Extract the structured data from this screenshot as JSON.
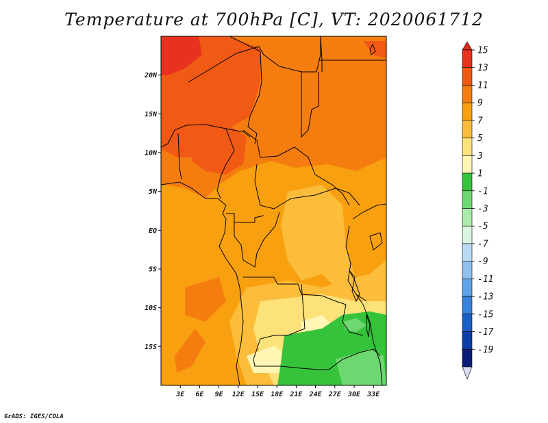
{
  "title": "Temperature at 700hPa [C], VT: 2020061712",
  "credit": "GrADS: IGES/COLA",
  "map": {
    "lon_range": [
      0,
      35
    ],
    "lat_range": [
      -20,
      25
    ],
    "lat_labels": [
      "20N",
      "15N",
      "10N",
      "5N",
      "EQ",
      "5S",
      "10S",
      "15S"
    ],
    "lon_labels": [
      "3E",
      "6E",
      "9E",
      "12E",
      "15E",
      "18E",
      "21E",
      "24E",
      "27E",
      "30E",
      "33E"
    ]
  },
  "colorbar": {
    "labels": [
      "15",
      "13",
      "11",
      "9",
      "7",
      "5",
      "3",
      "1",
      "-1",
      "-3",
      "-5",
      "-7",
      "-9",
      "-11",
      "-13",
      "-15",
      "-17",
      "-19"
    ],
    "colors": [
      "#e8321e",
      "#f05a14",
      "#f57d0f",
      "#f8a00f",
      "#fbbd3a",
      "#fde27a",
      "#fff6b4",
      "#35c33c",
      "#6ed870",
      "#a9ebaa",
      "#d8f5e0",
      "#b8dbf5",
      "#8cc1f0",
      "#5fa3e8",
      "#3682dc",
      "#1a60c8",
      "#0d3fa8",
      "#0a1e78"
    ],
    "top_arrow": "#d92a18",
    "bottom_arrow": "#dcdcf0"
  }
}
